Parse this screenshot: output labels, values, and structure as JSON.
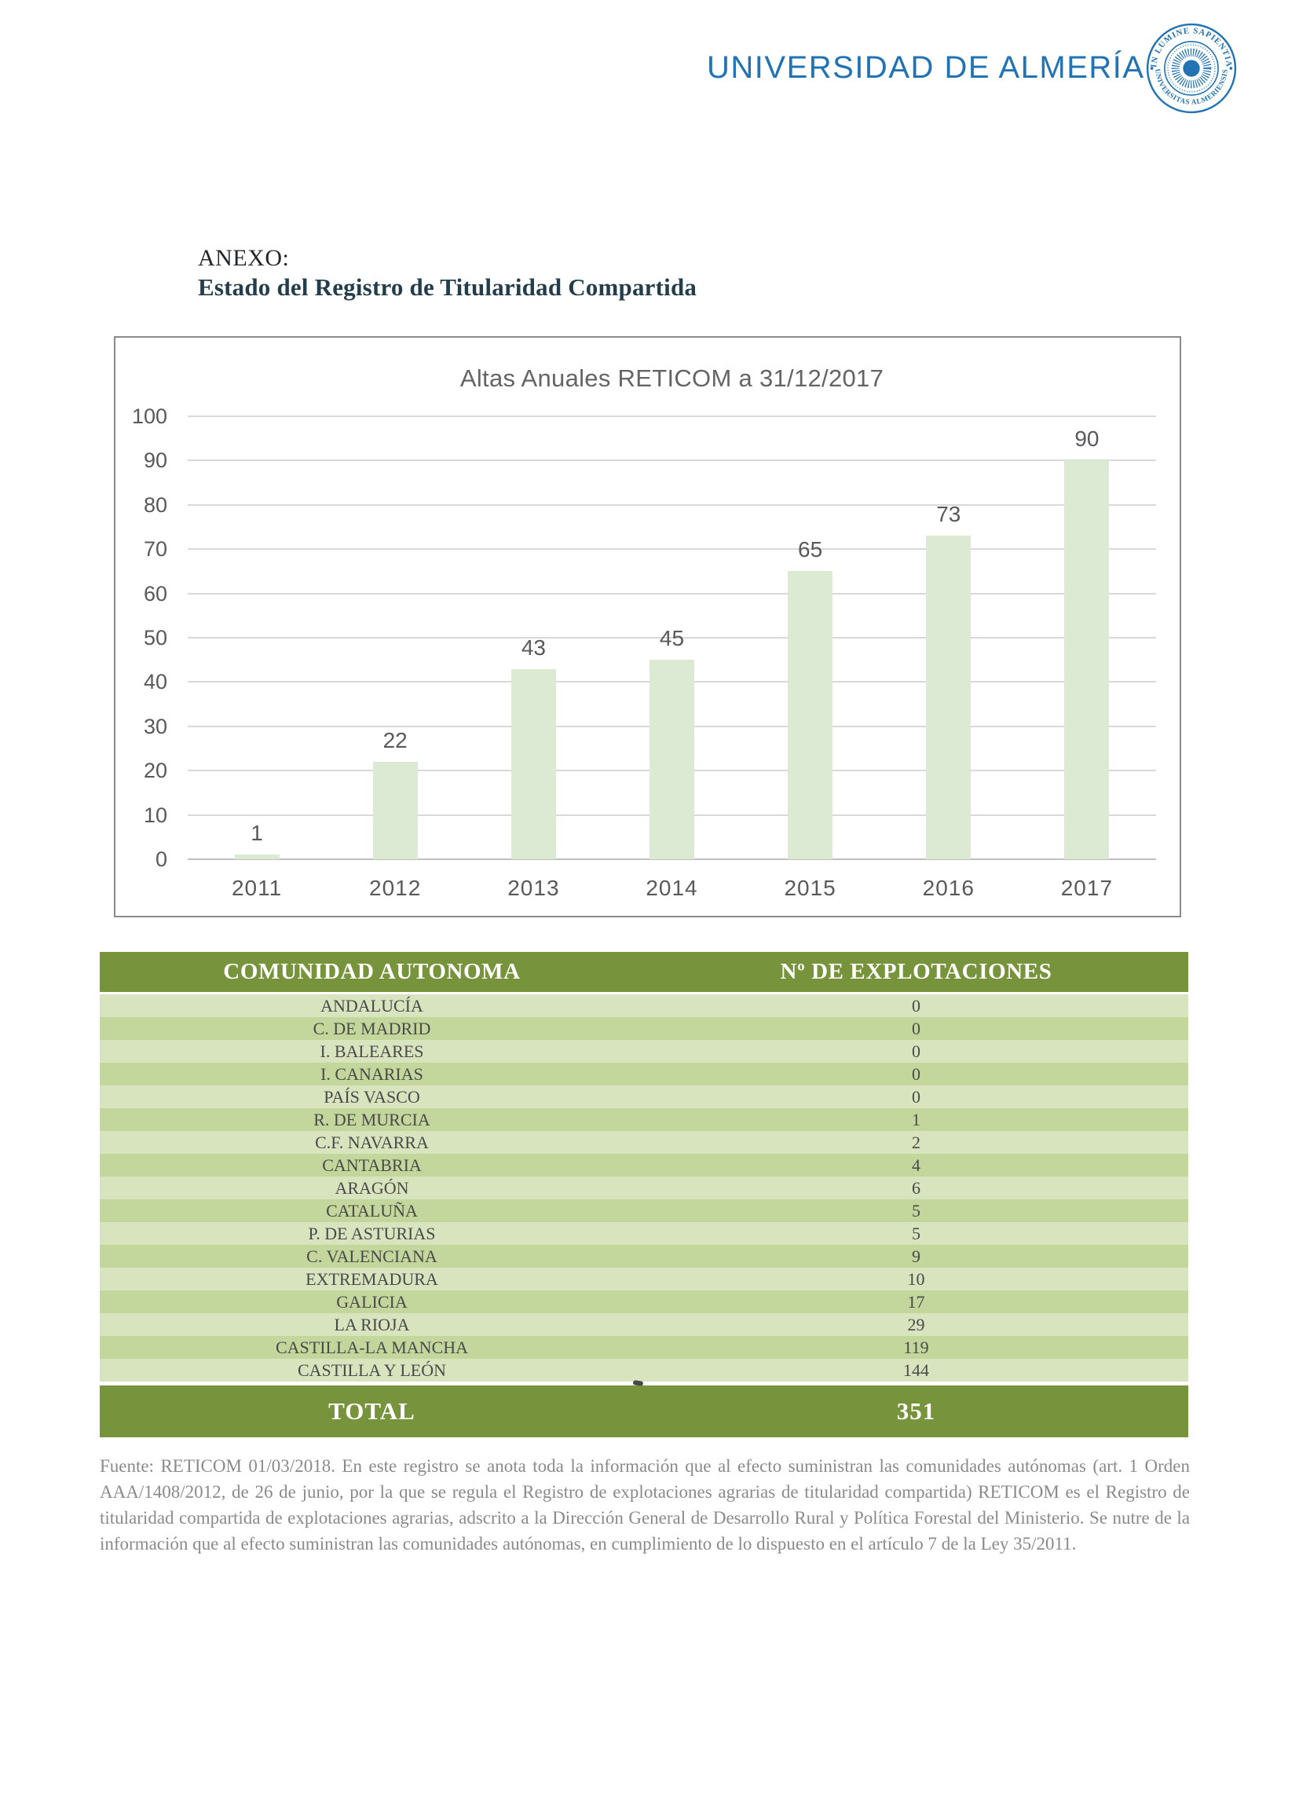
{
  "logo": {
    "wordmark": "UNIVERSIDAD DE ALMERÍA",
    "seal_top_text": "IN LUMINE SAPIENTIA",
    "seal_bottom_text": "UNIVERSITAS ALMERIENSIS",
    "brand_color": "#2173b4"
  },
  "heading": {
    "kicker": "ANEXO:",
    "title": "Estado del Registro de Titularidad Compartida"
  },
  "chart_data": {
    "type": "bar",
    "title": "Altas Anuales RETICOM a 31/12/2017",
    "categories": [
      "2011",
      "2012",
      "2013",
      "2014",
      "2015",
      "2016",
      "2017"
    ],
    "values": [
      1,
      22,
      43,
      45,
      65,
      73,
      90
    ],
    "xlabel": "",
    "ylabel": "",
    "ylim": [
      0,
      100
    ],
    "yticks": [
      0,
      10,
      20,
      30,
      40,
      50,
      60,
      70,
      80,
      90,
      100
    ],
    "grid": true,
    "legend": "none",
    "bar_color": "#dcead4",
    "label_color": "#595959"
  },
  "table": {
    "columns": [
      "COMUNIDAD AUTONOMA",
      "Nº DE EXPLOTACIONES"
    ],
    "rows": [
      [
        "ANDALUCÍA",
        "0"
      ],
      [
        "C. DE MADRID",
        "0"
      ],
      [
        "I. BALEARES",
        "0"
      ],
      [
        "I. CANARIAS",
        "0"
      ],
      [
        "PAÍS VASCO",
        "0"
      ],
      [
        "R. DE MURCIA",
        "1"
      ],
      [
        "C.F. NAVARRA",
        "2"
      ],
      [
        "CANTABRIA",
        "4"
      ],
      [
        "ARAGÓN",
        "6"
      ],
      [
        "CATALUÑA",
        "5"
      ],
      [
        "P. DE ASTURIAS",
        "5"
      ],
      [
        "C. VALENCIANA",
        "9"
      ],
      [
        "EXTREMADURA",
        "10"
      ],
      [
        "GALICIA",
        "17"
      ],
      [
        "LA RIOJA",
        "29"
      ],
      [
        "CASTILLA-LA MANCHA",
        "119"
      ],
      [
        "CASTILLA Y LEÓN",
        "144"
      ]
    ],
    "total_label": "TOTAL",
    "total_value": "351",
    "colors": {
      "header_bg": "#77933c",
      "row_light": "#d7e4bd",
      "row_dark": "#c3d69b"
    }
  },
  "footnote": {
    "text": "Fuente: RETICOM 01/03/2018. En este registro se anota toda la información que al efecto suministran las comunidades autónomas (art. 1 Orden AAA/1408/2012, de 26 de junio, por la que se regula el Registro de explotaciones agrarias de titularidad compartida) RETICOM es el Registro de titularidad compartida de explotaciones agrarias, adscrito a la Dirección General de Desarrollo Rural y Política Forestal del Ministerio. Se nutre de la información que al efecto suministran las comunidades autónomas, en cumplimiento de lo dispuesto en el artículo 7 de la Ley 35/2011."
  }
}
